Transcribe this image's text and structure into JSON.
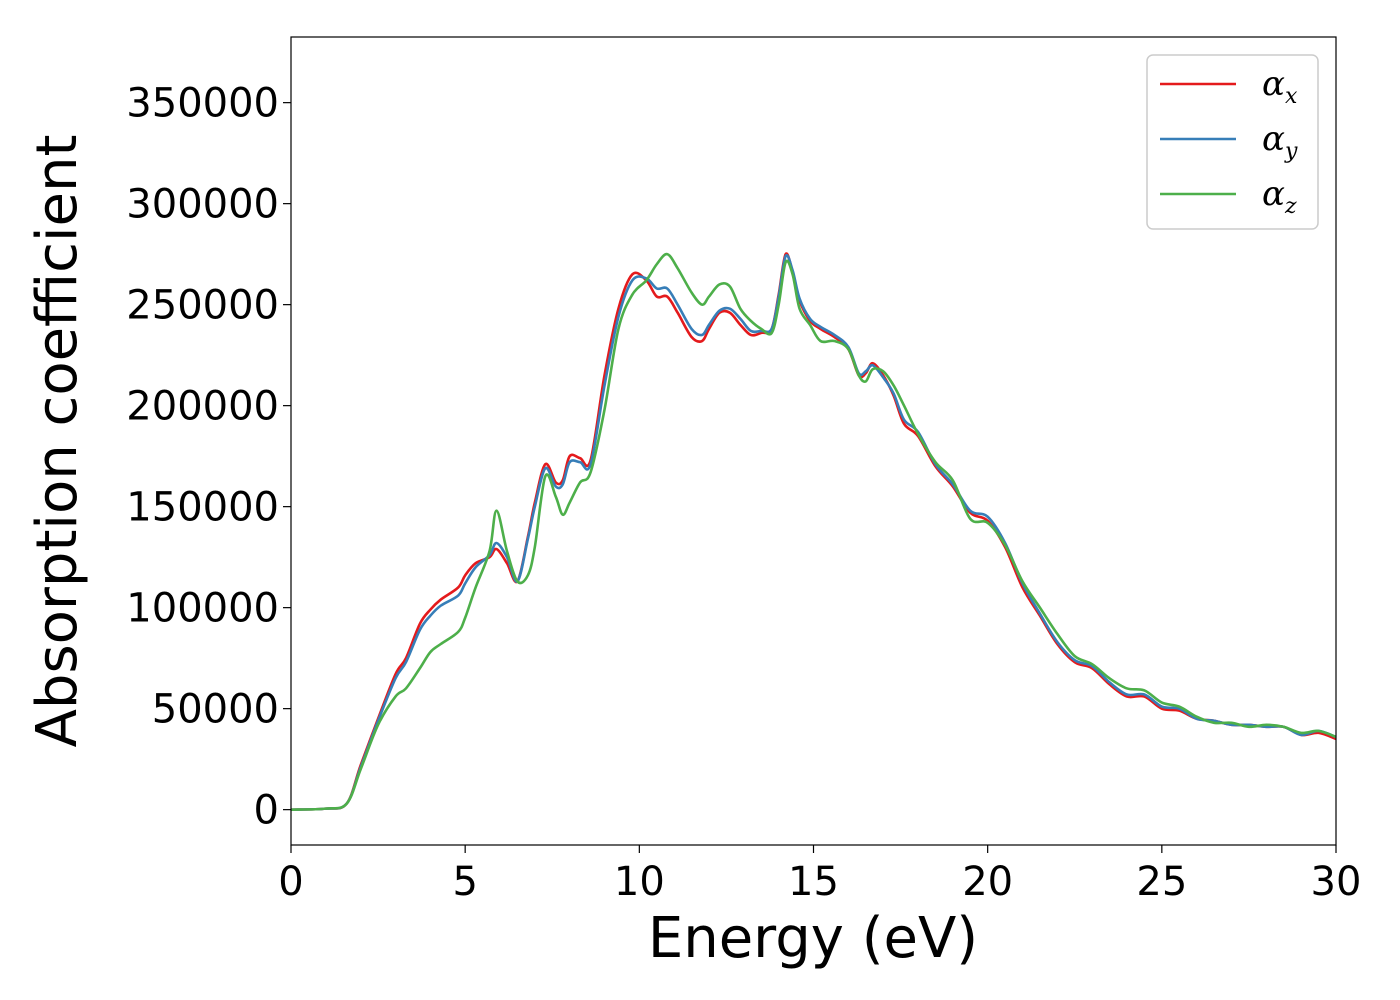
{
  "chart_data": {
    "type": "line",
    "xlabel": "Energy (eV)",
    "ylabel": "Absorption coefficient",
    "xlim": [
      0,
      30
    ],
    "ylim": [
      -17500,
      382500
    ],
    "xticks": [
      0,
      5,
      10,
      15,
      20,
      25,
      30
    ],
    "yticks": [
      0,
      50000,
      100000,
      150000,
      200000,
      250000,
      300000,
      350000
    ],
    "xtick_labels": [
      "0",
      "5",
      "10",
      "15",
      "20",
      "25",
      "30"
    ],
    "ytick_labels": [
      "0",
      "50000",
      "100000",
      "150000",
      "200000",
      "250000",
      "300000",
      "350000"
    ],
    "grid": false,
    "legend_position": "top-right",
    "series": [
      {
        "name": "α",
        "subscript": "x",
        "color": "#e41a1c",
        "x": [
          0,
          1,
          1.6,
          2.0,
          2.5,
          3.0,
          3.3,
          3.7,
          4.0,
          4.3,
          4.8,
          5.0,
          5.3,
          5.7,
          5.9,
          6.2,
          6.5,
          6.8,
          7.0,
          7.3,
          7.6,
          7.8,
          8.0,
          8.3,
          8.6,
          9.0,
          9.4,
          9.8,
          10.2,
          10.5,
          10.8,
          11.1,
          11.5,
          11.8,
          12.0,
          12.3,
          12.6,
          12.9,
          13.2,
          13.5,
          13.8,
          14.0,
          14.2,
          14.4,
          14.6,
          14.9,
          15.2,
          15.6,
          16.0,
          16.3,
          16.5,
          16.7,
          17.0,
          17.3,
          17.6,
          18.0,
          18.5,
          19.0,
          19.5,
          20.0,
          20.5,
          21.0,
          21.5,
          22.0,
          22.5,
          23.0,
          23.5,
          24.0,
          24.5,
          25.0,
          25.5,
          26.0,
          26.5,
          27.0,
          27.5,
          28.0,
          28.5,
          29.0,
          29.5,
          30
        ],
        "y": [
          0,
          500,
          3000,
          22000,
          45000,
          67000,
          75000,
          92000,
          99000,
          104000,
          110000,
          116000,
          122000,
          125000,
          129000,
          122000,
          113000,
          135000,
          152000,
          171000,
          162000,
          163000,
          175000,
          174000,
          173000,
          215000,
          248000,
          265000,
          262000,
          254000,
          254000,
          246000,
          234000,
          232000,
          238000,
          246000,
          246000,
          240000,
          235000,
          236000,
          238000,
          255000,
          275000,
          266000,
          252000,
          242000,
          238000,
          234000,
          228000,
          215000,
          216000,
          221000,
          215000,
          205000,
          191000,
          185000,
          170000,
          160000,
          147000,
          143000,
          130000,
          110000,
          96000,
          82000,
          73000,
          70000,
          62000,
          56000,
          56000,
          50000,
          49000,
          45000,
          44000,
          42000,
          42000,
          41000,
          41000,
          37000,
          38000,
          35000
        ]
      },
      {
        "name": "α",
        "subscript": "y",
        "color": "#377eb8",
        "x": [
          0,
          1,
          1.6,
          2.0,
          2.5,
          3.0,
          3.3,
          3.7,
          4.0,
          4.3,
          4.8,
          5.0,
          5.3,
          5.7,
          5.9,
          6.2,
          6.5,
          6.8,
          7.0,
          7.3,
          7.6,
          7.8,
          8.0,
          8.3,
          8.6,
          9.0,
          9.4,
          9.8,
          10.2,
          10.5,
          10.8,
          11.1,
          11.5,
          11.8,
          12.0,
          12.3,
          12.6,
          12.9,
          13.2,
          13.5,
          13.8,
          14.0,
          14.2,
          14.4,
          14.6,
          14.9,
          15.2,
          15.6,
          16.0,
          16.3,
          16.5,
          16.7,
          17.0,
          17.3,
          17.6,
          18.0,
          18.5,
          19.0,
          19.5,
          20.0,
          20.5,
          21.0,
          21.5,
          22.0,
          22.5,
          23.0,
          23.5,
          24.0,
          24.5,
          25.0,
          25.5,
          26.0,
          26.5,
          27.0,
          27.5,
          28.0,
          28.5,
          29.0,
          29.5,
          30
        ],
        "y": [
          0,
          500,
          3000,
          21000,
          44000,
          65000,
          73000,
          89000,
          96000,
          101000,
          106000,
          112000,
          120000,
          126000,
          132000,
          125000,
          113000,
          134000,
          150000,
          169000,
          160000,
          161000,
          172000,
          172000,
          171000,
          210000,
          244000,
          262000,
          263000,
          258000,
          258000,
          250000,
          238000,
          235000,
          240000,
          247000,
          248000,
          243000,
          237000,
          237000,
          238000,
          254000,
          274000,
          267000,
          253000,
          243000,
          239000,
          235000,
          229000,
          216000,
          217000,
          220000,
          214000,
          206000,
          193000,
          187000,
          171000,
          161000,
          148000,
          145000,
          132000,
          112000,
          97000,
          83000,
          74000,
          71000,
          63000,
          57000,
          57000,
          51000,
          50000,
          45000,
          44000,
          42000,
          42000,
          41000,
          41000,
          37000,
          39000,
          36000
        ]
      },
      {
        "name": "α",
        "subscript": "z",
        "color": "#4daf4a",
        "x": [
          0,
          1,
          1.6,
          2.0,
          2.5,
          3.0,
          3.3,
          3.7,
          4.0,
          4.3,
          4.8,
          5.0,
          5.3,
          5.7,
          5.9,
          6.2,
          6.5,
          6.8,
          7.0,
          7.3,
          7.6,
          7.8,
          8.0,
          8.3,
          8.6,
          9.0,
          9.4,
          9.8,
          10.2,
          10.5,
          10.8,
          11.1,
          11.5,
          11.8,
          12.0,
          12.3,
          12.6,
          12.9,
          13.2,
          13.5,
          13.8,
          14.0,
          14.2,
          14.4,
          14.6,
          14.9,
          15.2,
          15.6,
          16.0,
          16.3,
          16.5,
          16.7,
          17.0,
          17.3,
          17.6,
          18.0,
          18.5,
          19.0,
          19.5,
          20.0,
          20.5,
          21.0,
          21.5,
          22.0,
          22.5,
          23.0,
          23.5,
          24.0,
          24.5,
          25.0,
          25.5,
          26.0,
          26.5,
          27.0,
          27.5,
          28.0,
          28.5,
          29.0,
          29.5,
          30
        ],
        "y": [
          0,
          500,
          3000,
          20000,
          42000,
          56000,
          60000,
          70000,
          78000,
          82000,
          88000,
          95000,
          110000,
          128000,
          148000,
          128000,
          113000,
          116000,
          130000,
          165000,
          155000,
          146000,
          152000,
          162000,
          167000,
          198000,
          238000,
          255000,
          262000,
          270000,
          275000,
          268000,
          256000,
          250000,
          254000,
          260000,
          259000,
          248000,
          242000,
          238000,
          236000,
          250000,
          271000,
          265000,
          248000,
          240000,
          232000,
          232000,
          228000,
          215000,
          212000,
          218000,
          217000,
          210000,
          200000,
          186000,
          172000,
          163000,
          144000,
          142000,
          131000,
          113000,
          100000,
          87000,
          76000,
          72000,
          65000,
          60000,
          59000,
          53000,
          51000,
          46000,
          43000,
          43000,
          41000,
          42000,
          41000,
          38000,
          39000,
          36000
        ]
      }
    ]
  }
}
